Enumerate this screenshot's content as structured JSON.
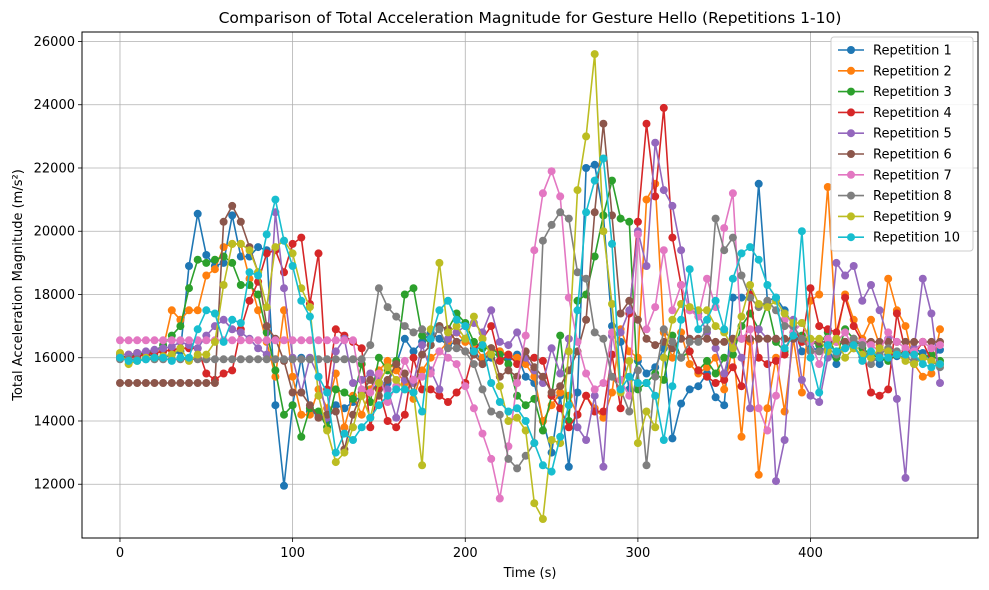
{
  "chart_data": {
    "type": "line",
    "title": "Comparison of Total Acceleration Magnitude for Gesture Hello (Repetitions 1-10)",
    "xlabel": "Time (s)",
    "ylabel": "Total Acceleration Magnitude (m/s²)",
    "xlim": [
      -22,
      497
    ],
    "ylim": [
      10300,
      26300
    ],
    "xticks": [
      0,
      100,
      200,
      300,
      400
    ],
    "yticks": [
      12000,
      14000,
      16000,
      18000,
      20000,
      22000,
      24000,
      26000
    ],
    "grid": true,
    "legend_position": "top-right",
    "marker": "circle",
    "x": [
      0,
      5,
      10,
      15,
      20,
      25,
      30,
      35,
      40,
      45,
      50,
      55,
      60,
      65,
      70,
      75,
      80,
      85,
      90,
      95,
      100,
      105,
      110,
      115,
      120,
      125,
      130,
      135,
      140,
      145,
      150,
      155,
      160,
      165,
      170,
      175,
      180,
      185,
      190,
      195,
      200,
      205,
      210,
      215,
      220,
      225,
      230,
      235,
      240,
      245,
      250,
      255,
      260,
      265,
      270,
      275,
      280,
      285,
      290,
      295,
      300,
      305,
      310,
      315,
      320,
      325,
      330,
      335,
      340,
      345,
      350,
      355,
      360,
      365,
      370,
      375,
      380,
      385,
      390,
      395,
      400,
      405,
      410,
      415,
      420,
      425,
      430,
      435,
      440,
      445,
      450,
      455,
      460,
      465,
      470,
      475
    ],
    "series": [
      {
        "name": "Repetition 1",
        "color": "#1f77b4",
        "values": [
          16000,
          16050,
          16050,
          16100,
          16050,
          16000,
          16100,
          16200,
          18900,
          20550,
          19250,
          18900,
          19000,
          20500,
          19200,
          19200,
          19500,
          19400,
          14500,
          11950,
          14500,
          16000,
          14300,
          14200,
          14000,
          14500,
          14400,
          14600,
          14800,
          15000,
          15100,
          15200,
          15800,
          16600,
          16200,
          16500,
          16800,
          16600,
          16400,
          16500,
          16600,
          16300,
          15800,
          16000,
          16200,
          16000,
          16100,
          15400,
          15200,
          14000,
          13000,
          14800,
          12550,
          14900,
          22000,
          22100,
          20500,
          17000,
          16500,
          15000,
          15900,
          15500,
          15700,
          16300,
          13450,
          14550,
          15000,
          15100,
          15500,
          14750,
          14500,
          17900,
          17900,
          17900,
          21500,
          17800,
          17900,
          17500,
          17000,
          16200,
          16300,
          16250,
          16300,
          15800,
          16500,
          16300,
          16050,
          16100,
          15800,
          16100,
          16050,
          16000,
          16300,
          16150,
          15950,
          16250
        ]
      },
      {
        "name": "Repetition 2",
        "color": "#ff7f0e",
        "values": [
          16100,
          16100,
          16150,
          16100,
          16200,
          16300,
          17500,
          17200,
          17500,
          17500,
          18600,
          18800,
          19500,
          19600,
          19600,
          18500,
          17500,
          16500,
          15400,
          17500,
          15400,
          14200,
          14200,
          15000,
          14400,
          15500,
          13800,
          14800,
          14200,
          15000,
          15600,
          15900,
          15600,
          15200,
          14700,
          15600,
          16000,
          16200,
          16500,
          16800,
          16500,
          16400,
          16000,
          16300,
          16200,
          16100,
          16000,
          15800,
          15400,
          14000,
          14500,
          14900,
          14800,
          14200,
          14800,
          14400,
          14100,
          14900,
          16900,
          16200,
          16000,
          21000,
          21500,
          16800,
          16000,
          16800,
          15800,
          15500,
          15700,
          16000,
          15000,
          16400,
          13500,
          16500,
          12300,
          14400,
          16000,
          14300,
          16600,
          14900,
          17800,
          18000,
          21400,
          16600,
          18000,
          17200,
          16600,
          17200,
          16400,
          18500,
          17500,
          17000,
          15800,
          15400,
          15500,
          16900
        ]
      },
      {
        "name": "Repetition 3",
        "color": "#2ca02c",
        "values": [
          16000,
          16050,
          16100,
          16150,
          16200,
          16400,
          16700,
          17000,
          18200,
          19100,
          19000,
          19100,
          19200,
          19000,
          18300,
          18300,
          18000,
          16800,
          15600,
          14200,
          14500,
          13500,
          14400,
          14300,
          13800,
          15000,
          14900,
          14700,
          15800,
          14600,
          16000,
          15600,
          15900,
          18000,
          18200,
          16700,
          16400,
          17000,
          16900,
          17400,
          17100,
          16500,
          16300,
          16300,
          16100,
          15800,
          14800,
          14500,
          14700,
          13700,
          14800,
          16700,
          14000,
          17800,
          18000,
          19200,
          20500,
          21600,
          20400,
          20300,
          15000,
          15200,
          15500,
          15300,
          16700,
          16000,
          16200,
          15600,
          15900,
          15500,
          16000,
          16100,
          17000,
          17400,
          16900,
          17700,
          16500,
          16200,
          16800,
          16700,
          16500,
          16400,
          16800,
          16000,
          16900,
          16600,
          16300,
          16100,
          16000,
          15900,
          16100,
          16200,
          16250,
          16000,
          16100,
          15900
        ]
      },
      {
        "name": "Repetition 4",
        "color": "#d62728",
        "values": [
          16000,
          16000,
          16050,
          16100,
          16150,
          16200,
          16250,
          16300,
          16300,
          16300,
          15500,
          15300,
          15500,
          15600,
          16900,
          17800,
          18400,
          19300,
          19400,
          18700,
          19600,
          19800,
          17700,
          19300,
          15000,
          16900,
          16700,
          16500,
          16300,
          13800,
          15000,
          14000,
          13800,
          14200,
          16000,
          15000,
          15000,
          14800,
          14600,
          14900,
          15200,
          16200,
          16600,
          17000,
          15900,
          16100,
          15800,
          16000,
          16000,
          15900,
          14800,
          14400,
          13800,
          14200,
          14800,
          14300,
          14300,
          16100,
          14400,
          17400,
          20300,
          23400,
          21100,
          23900,
          19800,
          18300,
          16200,
          15600,
          15400,
          15200,
          15300,
          15700,
          15100,
          18000,
          16000,
          15800,
          15900,
          16100,
          17000,
          16500,
          18200,
          17000,
          16900,
          16800,
          17900,
          17000,
          16500,
          14900,
          14800,
          15000,
          17400,
          16200,
          16100,
          16500,
          15900,
          15800
        ]
      },
      {
        "name": "Repetition 5",
        "color": "#9467bd",
        "values": [
          16100,
          16100,
          16150,
          16200,
          16250,
          16300,
          16350,
          16500,
          16400,
          16300,
          16700,
          17000,
          17200,
          16900,
          16800,
          16600,
          16300,
          16100,
          20600,
          18200,
          16000,
          14900,
          16000,
          15400,
          14100,
          16200,
          16600,
          15200,
          15300,
          15500,
          15400,
          15000,
          14100,
          15300,
          15200,
          16400,
          15600,
          15000,
          16600,
          16800,
          17000,
          17100,
          16800,
          17500,
          16500,
          16400,
          16800,
          16000,
          15600,
          15200,
          16300,
          15500,
          16600,
          13800,
          13400,
          14800,
          12550,
          16700,
          16800,
          17500,
          20000,
          18900,
          22800,
          21300,
          20800,
          19400,
          17500,
          17400,
          16800,
          16300,
          15500,
          16600,
          16000,
          14400,
          16900,
          16600,
          12100,
          13400,
          17200,
          15300,
          14800,
          14600,
          16000,
          19000,
          18600,
          18900,
          17800,
          18300,
          17500,
          16600,
          14700,
          12200,
          16300,
          18500,
          17400,
          15200
        ]
      },
      {
        "name": "Repetition 6",
        "color": "#8c564b",
        "values": [
          15200,
          15200,
          15200,
          15200,
          15200,
          15200,
          15200,
          15200,
          15200,
          15200,
          15200,
          15200,
          20300,
          20800,
          20300,
          19500,
          18700,
          17000,
          16600,
          15900,
          14900,
          14900,
          14500,
          14100,
          14200,
          14300,
          13100,
          14200,
          14900,
          15300,
          14800,
          15300,
          15800,
          15500,
          14900,
          16100,
          16400,
          17000,
          16900,
          16500,
          16200,
          16100,
          15800,
          16300,
          15400,
          15600,
          15400,
          16200,
          15700,
          15400,
          14900,
          15100,
          15600,
          16200,
          17200,
          20600,
          23400,
          20500,
          17400,
          17800,
          17200,
          16600,
          16400,
          16500,
          16300,
          16600,
          16600,
          16600,
          16600,
          16500,
          16500,
          16600,
          16600,
          16600,
          16600,
          16600,
          16600,
          16600,
          16600,
          16600,
          16500,
          16500,
          16500,
          16500,
          16500,
          16500,
          16500,
          16500,
          16500,
          16500,
          16500,
          16500,
          16500,
          16500,
          16500,
          16500
        ]
      },
      {
        "name": "Repetition 7",
        "color": "#e377c2",
        "values": [
          16550,
          16550,
          16550,
          16550,
          16550,
          16550,
          16550,
          16550,
          16550,
          16550,
          16550,
          16550,
          16550,
          16550,
          16550,
          16550,
          16550,
          16550,
          16550,
          16550,
          16550,
          16550,
          16550,
          16550,
          16550,
          16550,
          16550,
          16550,
          15000,
          14900,
          15500,
          14600,
          15100,
          15900,
          15300,
          15400,
          15500,
          16200,
          16000,
          15800,
          15100,
          14400,
          13600,
          12800,
          11550,
          13200,
          15200,
          16700,
          19400,
          21200,
          21900,
          21100,
          17900,
          16500,
          15500,
          15000,
          15200,
          16800,
          15300,
          14800,
          19900,
          16900,
          17600,
          19400,
          17500,
          18300,
          17500,
          17300,
          18500,
          17600,
          20100,
          21200,
          16600,
          16900,
          14400,
          13700,
          14800,
          17200,
          16800,
          17100,
          16500,
          15800,
          16600,
          16500,
          16800,
          16300,
          16500,
          16400,
          16200,
          16800,
          16500,
          16300,
          16200,
          16500,
          16300,
          16400
        ]
      },
      {
        "name": "Repetition 8",
        "color": "#7f7f7f",
        "values": [
          15950,
          15950,
          15950,
          15950,
          15950,
          15950,
          15950,
          15950,
          15950,
          15950,
          15950,
          15950,
          15950,
          15950,
          15950,
          15950,
          15950,
          15950,
          15950,
          15950,
          15950,
          15950,
          15950,
          15950,
          15950,
          15950,
          15950,
          15950,
          15950,
          16400,
          18200,
          17600,
          17300,
          17000,
          16800,
          16900,
          16600,
          16900,
          16300,
          16300,
          16200,
          15800,
          15000,
          14300,
          14200,
          12800,
          12500,
          12900,
          13300,
          19700,
          20200,
          20600,
          20400,
          18700,
          18500,
          16800,
          16600,
          15400,
          15000,
          14300,
          15600,
          12600,
          15400,
          16900,
          16500,
          16000,
          16500,
          16500,
          16900,
          20400,
          19400,
          19800,
          18600,
          17900,
          17600,
          17800,
          17500,
          17000,
          17000,
          16600,
          16200,
          16200,
          16300,
          16100,
          16300,
          16600,
          16400,
          15800,
          16100,
          16300,
          16200,
          16000,
          15900,
          16000,
          15900,
          15700
        ]
      },
      {
        "name": "Repetition 9",
        "color": "#bcbd22",
        "values": [
          16150,
          15800,
          15900,
          16000,
          16000,
          16050,
          16100,
          16300,
          15900,
          16100,
          16100,
          16500,
          18300,
          19600,
          19600,
          19400,
          18700,
          17600,
          19500,
          19700,
          19300,
          18200,
          17600,
          14800,
          13700,
          12700,
          13000,
          13800,
          14800,
          14100,
          15200,
          15700,
          15300,
          15000,
          14900,
          12600,
          16900,
          19000,
          16800,
          17000,
          16600,
          17300,
          16600,
          16100,
          15100,
          14000,
          14100,
          13700,
          11400,
          10900,
          13400,
          13300,
          16200,
          21300,
          23000,
          25600,
          20000,
          17700,
          14900,
          15900,
          13300,
          14300,
          13800,
          16000,
          17200,
          17700,
          17600,
          17500,
          17500,
          17000,
          16800,
          16300,
          17300,
          18300,
          17700,
          17600,
          17800,
          17400,
          17100,
          17100,
          16600,
          16600,
          16200,
          16600,
          16000,
          16300,
          16100,
          16000,
          16300,
          16200,
          16100,
          15900,
          15800,
          16000,
          15900,
          15800
        ]
      },
      {
        "name": "Repetition 10",
        "color": "#17becf",
        "values": [
          16000,
          15900,
          15900,
          15950,
          16000,
          16000,
          15900,
          16000,
          16000,
          16900,
          17500,
          17400,
          16500,
          17200,
          17100,
          18700,
          18600,
          19900,
          21000,
          19700,
          18900,
          17800,
          17300,
          15400,
          14900,
          13000,
          13600,
          13400,
          13800,
          14100,
          14500,
          14800,
          15000,
          15000,
          14900,
          14300,
          16600,
          17500,
          17800,
          17200,
          17000,
          16200,
          16400,
          15200,
          14600,
          14300,
          14400,
          14000,
          13300,
          12600,
          12400,
          13500,
          14500,
          17500,
          20600,
          21600,
          22300,
          19600,
          15000,
          15400,
          15200,
          15200,
          14800,
          13400,
          15100,
          17200,
          18800,
          16900,
          17200,
          17800,
          16900,
          18500,
          19300,
          19500,
          19100,
          18300,
          17900,
          16300,
          16700,
          20000,
          16000,
          14900,
          16400,
          16200,
          16300,
          16400,
          15900,
          16200,
          16000,
          16000,
          16100,
          16100,
          16100,
          15800,
          15700,
          15800
        ]
      }
    ]
  }
}
